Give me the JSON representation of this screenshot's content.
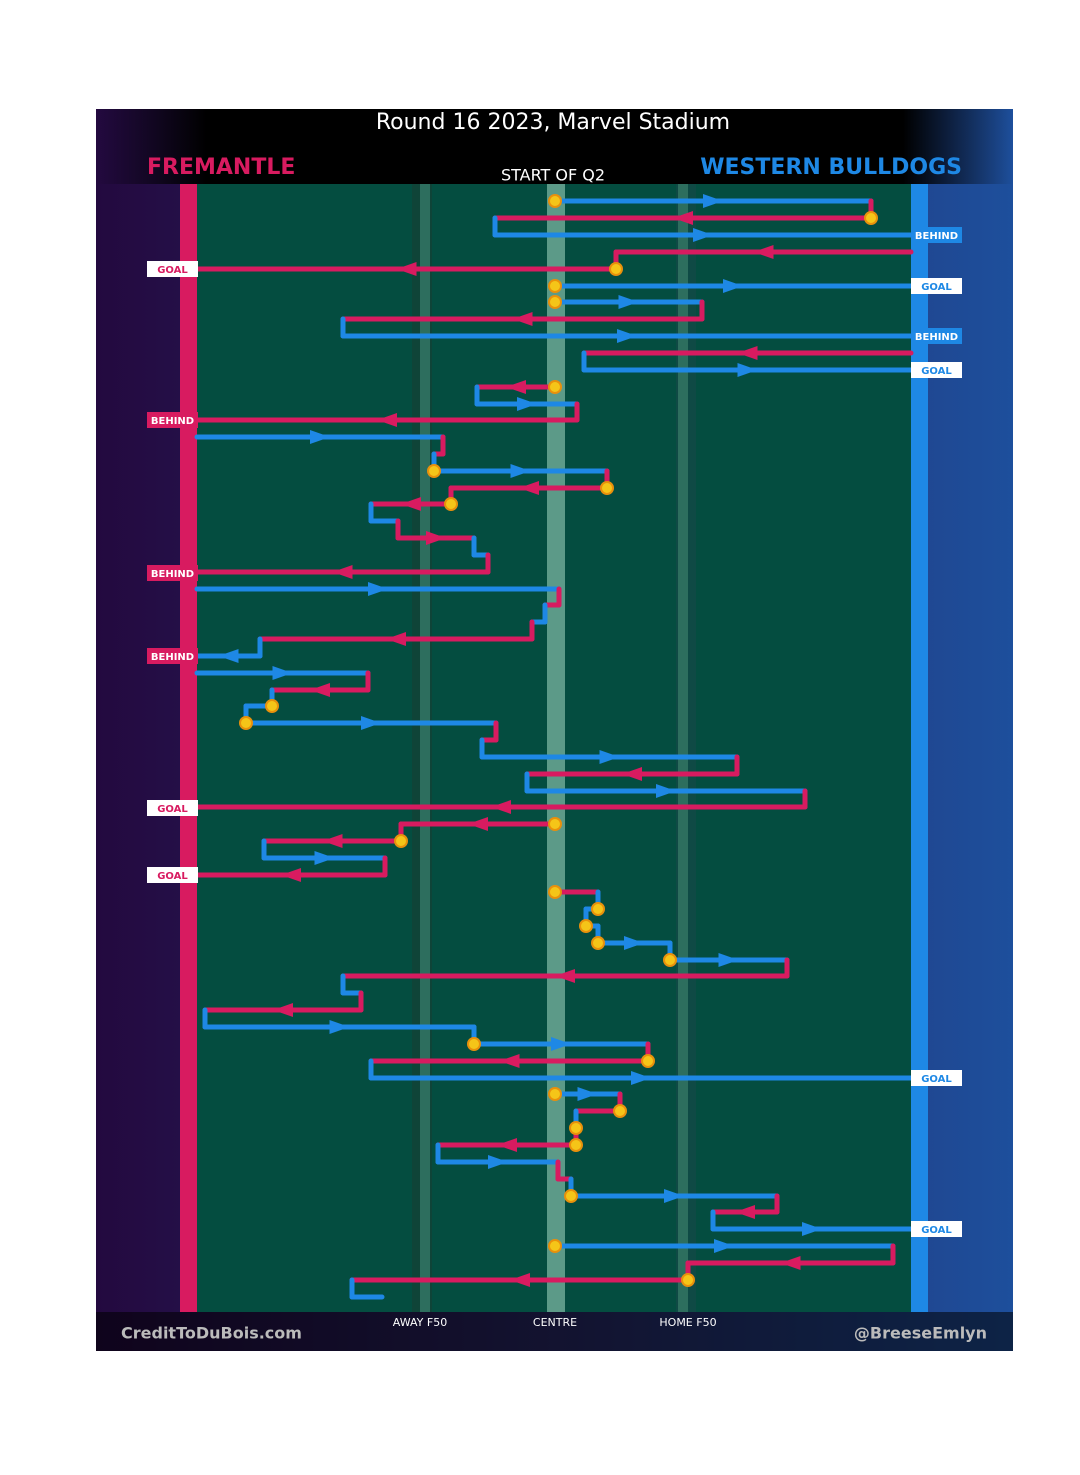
{
  "header": {
    "title": "Round 16 2023, Marvel Stadium",
    "subtitle": "START OF Q2"
  },
  "teams": {
    "home_left": "FREMANTLE",
    "away_right": "WESTERN BULLDOGS"
  },
  "field_labels": [
    "AWAY F50",
    "CENTRE",
    "HOME F50"
  ],
  "outcomes": [
    "BEHIND",
    "GOAL",
    "GOAL",
    "BEHIND",
    "GOAL",
    "BEHIND",
    "BEHIND",
    "BEHIND",
    "GOAL",
    "GOAL",
    "GOAL",
    "GOAL"
  ],
  "footer": {
    "left": "CreditToDuBois.com",
    "right": "@BreeseEmlyn"
  }
}
